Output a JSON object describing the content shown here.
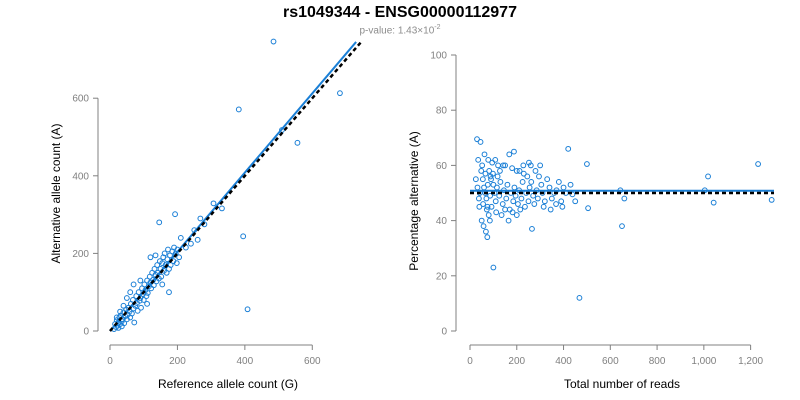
{
  "title": "rs1049344 - ENSG00000112977",
  "subtitle": {
    "prefix": "p-value: 1.43×10",
    "exponent": "-2"
  },
  "colors": {
    "points": "#1a7fd6",
    "fit_line": "#1a7fd6",
    "reference_line": "#000000",
    "axis": "#808080"
  },
  "chart_data": [
    {
      "type": "scatter",
      "xlabel": "Reference allele count (G)",
      "ylabel": "Alternative allele count (A)",
      "xlim": [
        0,
        700
      ],
      "ylim": [
        0,
        750
      ],
      "xticks": [
        0,
        200,
        400,
        600
      ],
      "yticks": [
        0,
        200,
        400,
        600
      ],
      "xtick_labels": [
        "0",
        "200",
        "400",
        "600"
      ],
      "ytick_labels": [
        "0",
        "200",
        "400",
        "600"
      ],
      "lines": [
        {
          "name": "fit",
          "style": "solid",
          "x": [
            0,
            730
          ],
          "y": [
            0,
            745
          ]
        },
        {
          "name": "reference",
          "style": "dashed",
          "x": [
            0,
            745
          ],
          "y": [
            0,
            745
          ]
        }
      ],
      "points": [
        [
          485,
          746
        ],
        [
          382,
          571
        ],
        [
          682,
          613
        ],
        [
          510,
          518
        ],
        [
          556,
          485
        ],
        [
          395,
          244
        ],
        [
          408,
          56
        ],
        [
          307,
          329
        ],
        [
          332,
          316
        ],
        [
          260,
          235
        ],
        [
          193,
          301
        ],
        [
          146,
          280
        ],
        [
          12,
          5
        ],
        [
          15,
          18
        ],
        [
          18,
          10
        ],
        [
          20,
          28
        ],
        [
          22,
          14
        ],
        [
          25,
          22
        ],
        [
          28,
          35
        ],
        [
          30,
          18
        ],
        [
          32,
          40
        ],
        [
          35,
          25
        ],
        [
          38,
          30
        ],
        [
          40,
          48
        ],
        [
          42,
          20
        ],
        [
          45,
          38
        ],
        [
          48,
          55
        ],
        [
          50,
          30
        ],
        [
          52,
          42
        ],
        [
          55,
          60
        ],
        [
          58,
          50
        ],
        [
          60,
          35
        ],
        [
          62,
          70
        ],
        [
          65,
          45
        ],
        [
          68,
          80
        ],
        [
          70,
          58
        ],
        [
          72,
          22
        ],
        [
          75,
          65
        ],
        [
          78,
          90
        ],
        [
          80,
          72
        ],
        [
          82,
          52
        ],
        [
          85,
          100
        ],
        [
          88,
          78
        ],
        [
          90,
          85
        ],
        [
          92,
          60
        ],
        [
          95,
          110
        ],
        [
          98,
          95
        ],
        [
          100,
          80
        ],
        [
          102,
          120
        ],
        [
          105,
          105
        ],
        [
          108,
          90
        ],
        [
          110,
          130
        ],
        [
          112,
          98
        ],
        [
          115,
          115
        ],
        [
          118,
          140
        ],
        [
          120,
          125
        ],
        [
          122,
          110
        ],
        [
          125,
          150
        ],
        [
          128,
          132
        ],
        [
          130,
          118
        ],
        [
          132,
          160
        ],
        [
          135,
          145
        ],
        [
          138,
          128
        ],
        [
          140,
          170
        ],
        [
          142,
          150
        ],
        [
          145,
          135
        ],
        [
          148,
          180
        ],
        [
          150,
          160
        ],
        [
          152,
          140
        ],
        [
          155,
          175
        ],
        [
          158,
          190
        ],
        [
          160,
          155
        ],
        [
          162,
          200
        ],
        [
          165,
          170
        ],
        [
          168,
          150
        ],
        [
          170,
          185
        ],
        [
          172,
          210
        ],
        [
          175,
          160
        ],
        [
          178,
          195
        ],
        [
          180,
          170
        ],
        [
          185,
          205
        ],
        [
          188,
          180
        ],
        [
          190,
          215
        ],
        [
          195,
          200
        ],
        [
          198,
          175
        ],
        [
          200,
          210
        ],
        [
          205,
          190
        ],
        [
          175,
          100
        ],
        [
          120,
          190
        ],
        [
          60,
          100
        ],
        [
          110,
          70
        ],
        [
          90,
          130
        ],
        [
          135,
          195
        ],
        [
          155,
          120
        ],
        [
          70,
          120
        ],
        [
          50,
          85
        ],
        [
          40,
          65
        ],
        [
          30,
          50
        ],
        [
          20,
          35
        ],
        [
          25,
          8
        ],
        [
          35,
          12
        ],
        [
          225,
          215
        ],
        [
          250,
          260
        ],
        [
          280,
          275
        ],
        [
          210,
          240
        ],
        [
          240,
          225
        ],
        [
          268,
          290
        ]
      ]
    },
    {
      "type": "scatter",
      "xlabel": "Total number of reads",
      "ylabel": "Percentage alternative (A)",
      "xlim": [
        0,
        1300
      ],
      "ylim": [
        0,
        100
      ],
      "xticks": [
        0,
        200,
        400,
        600,
        800,
        1000,
        1200
      ],
      "yticks": [
        0,
        20,
        40,
        60,
        80,
        100
      ],
      "xtick_labels": [
        "0",
        "200",
        "400",
        "600",
        "800",
        "1,000",
        "1,200"
      ],
      "ytick_labels": [
        "0",
        "20",
        "40",
        "60",
        "80",
        "100"
      ],
      "lines": [
        {
          "name": "fit",
          "style": "solid",
          "x": [
            0,
            1300
          ],
          "y": [
            50.8,
            50.8
          ]
        },
        {
          "name": "reference",
          "style": "dashed",
          "x": [
            0,
            1300
          ],
          "y": [
            50,
            50
          ]
        }
      ],
      "points": [
        [
          1290,
          47.5
        ],
        [
          1232,
          60.5
        ],
        [
          1042,
          46.5
        ],
        [
          1018,
          56
        ],
        [
          1004,
          51
        ],
        [
          660,
          48
        ],
        [
          650,
          38
        ],
        [
          643,
          51
        ],
        [
          505,
          44.5
        ],
        [
          500,
          60.5
        ],
        [
          468,
          12
        ],
        [
          450,
          47
        ],
        [
          438,
          49.5
        ],
        [
          420,
          66
        ],
        [
          100,
          23
        ],
        [
          265,
          37
        ],
        [
          74,
          34
        ],
        [
          30,
          69.5
        ],
        [
          45,
          68.5
        ],
        [
          62,
          64
        ],
        [
          78,
          62
        ],
        [
          95,
          61
        ],
        [
          120,
          60
        ],
        [
          150,
          60
        ],
        [
          180,
          59
        ],
        [
          200,
          58
        ],
        [
          230,
          57
        ],
        [
          260,
          60
        ],
        [
          280,
          58
        ],
        [
          300,
          60
        ],
        [
          35,
          62
        ],
        [
          48,
          58
        ],
        [
          55,
          55
        ],
        [
          60,
          52
        ],
        [
          65,
          50
        ],
        [
          70,
          48
        ],
        [
          75,
          45
        ],
        [
          80,
          42
        ],
        [
          85,
          40
        ],
        [
          90,
          55
        ],
        [
          100,
          53
        ],
        [
          105,
          50
        ],
        [
          110,
          47
        ],
        [
          115,
          52
        ],
        [
          125,
          49
        ],
        [
          130,
          54
        ],
        [
          140,
          46
        ],
        [
          145,
          51
        ],
        [
          155,
          48
        ],
        [
          160,
          53
        ],
        [
          170,
          44
        ],
        [
          175,
          50
        ],
        [
          185,
          47
        ],
        [
          190,
          52
        ],
        [
          195,
          49
        ],
        [
          205,
          46
        ],
        [
          210,
          51
        ],
        [
          220,
          48
        ],
        [
          225,
          54
        ],
        [
          235,
          45
        ],
        [
          240,
          50
        ],
        [
          250,
          47
        ],
        [
          255,
          52
        ],
        [
          270,
          49
        ],
        [
          275,
          46
        ],
        [
          285,
          51
        ],
        [
          290,
          48
        ],
        [
          305,
          53
        ],
        [
          310,
          50
        ],
        [
          320,
          47
        ],
        [
          330,
          55
        ],
        [
          340,
          52
        ],
        [
          350,
          48
        ],
        [
          360,
          50
        ],
        [
          370,
          51
        ],
        [
          380,
          54
        ],
        [
          390,
          47
        ],
        [
          400,
          52
        ],
        [
          410,
          50
        ],
        [
          430,
          53
        ],
        [
          40,
          45
        ],
        [
          50,
          40
        ],
        [
          58,
          38
        ],
        [
          68,
          36
        ],
        [
          72,
          44
        ],
        [
          82,
          58
        ],
        [
          88,
          56
        ],
        [
          98,
          57
        ],
        [
          108,
          62
        ],
        [
          118,
          56
        ],
        [
          135,
          42
        ],
        [
          150,
          44
        ],
        [
          165,
          40
        ],
        [
          182,
          43
        ],
        [
          200,
          42
        ],
        [
          215,
          44
        ],
        [
          245,
          56
        ],
        [
          262,
          54
        ],
        [
          295,
          56
        ],
        [
          315,
          45
        ],
        [
          345,
          44
        ],
        [
          368,
          46
        ],
        [
          395,
          45
        ],
        [
          25,
          55
        ],
        [
          32,
          52
        ],
        [
          38,
          48
        ],
        [
          42,
          50
        ],
        [
          52,
          60
        ],
        [
          56,
          46
        ],
        [
          66,
          57
        ],
        [
          76,
          53
        ],
        [
          86,
          49
        ],
        [
          92,
          45
        ],
        [
          112,
          43
        ],
        [
          128,
          58
        ],
        [
          142,
          60
        ],
        [
          168,
          64
        ],
        [
          188,
          65
        ],
        [
          212,
          58
        ],
        [
          228,
          60
        ],
        [
          252,
          61
        ]
      ]
    }
  ]
}
